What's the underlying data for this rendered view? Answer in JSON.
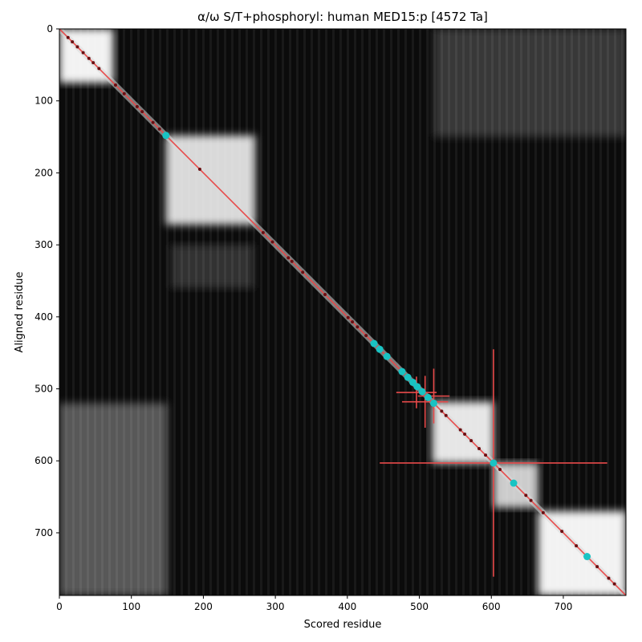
{
  "chart_data": {
    "type": "heatmap",
    "title": "α/ω S/T+phosphoryl: human MED15:p [4572 Ta]",
    "xlabel": "Scored residue",
    "ylabel": "Aligned residue",
    "xlim": [
      0,
      787
    ],
    "ylim": [
      787,
      0
    ],
    "x_ticks": [
      0,
      100,
      200,
      300,
      400,
      500,
      600,
      700
    ],
    "y_ticks": [
      0,
      100,
      200,
      300,
      400,
      500,
      600,
      700
    ],
    "x_tick_labels": [
      "0",
      "100",
      "200",
      "300",
      "400",
      "500",
      "600",
      "700"
    ],
    "y_tick_labels": [
      "0",
      "100",
      "200",
      "300",
      "400",
      "500",
      "600",
      "700"
    ],
    "colormap": "grayscale",
    "diagonal_color": "#e84a4a",
    "highlight_color": "#19c3c3",
    "bright_blocks": [
      {
        "x": [
          0,
          75
        ],
        "y": [
          0,
          75
        ],
        "intensity": 0.95
      },
      {
        "x": [
          148,
          272
        ],
        "y": [
          148,
          272
        ],
        "intensity": 0.85
      },
      {
        "x": [
          518,
          603
        ],
        "y": [
          518,
          603
        ],
        "intensity": 0.9
      },
      {
        "x": [
          603,
          665
        ],
        "y": [
          603,
          665
        ],
        "intensity": 0.8
      },
      {
        "x": [
          665,
          787
        ],
        "y": [
          670,
          787
        ],
        "intensity": 0.95
      },
      {
        "x": [
          0,
          150
        ],
        "y": [
          520,
          787
        ],
        "intensity": 0.35
      },
      {
        "x": [
          520,
          787
        ],
        "y": [
          0,
          150
        ],
        "intensity": 0.22
      },
      {
        "x": [
          155,
          270
        ],
        "y": [
          300,
          360
        ],
        "intensity": 0.2
      }
    ],
    "highlighted_residues": [
      148,
      437,
      445,
      455,
      476,
      484,
      491,
      497,
      504,
      512,
      520,
      603,
      631,
      733
    ],
    "phospho_sites": [
      12,
      18,
      25,
      33,
      41,
      47,
      55,
      78,
      90,
      108,
      115,
      130,
      139,
      195,
      283,
      296,
      318,
      323,
      338,
      369,
      401,
      407,
      414,
      426,
      531,
      537,
      557,
      563,
      572,
      583,
      592,
      612,
      648,
      655,
      672,
      698,
      718,
      747,
      763,
      771
    ],
    "crosshairs": [
      {
        "x": 603,
        "y": 603,
        "h_half": 158,
        "v_half": 158
      },
      {
        "x": 520,
        "y": 510,
        "h_half": 22,
        "v_half": 38
      },
      {
        "x": 508,
        "y": 518,
        "h_half": 32,
        "v_half": 36
      },
      {
        "x": 496,
        "y": 505,
        "h_half": 28,
        "v_half": 22
      }
    ]
  }
}
